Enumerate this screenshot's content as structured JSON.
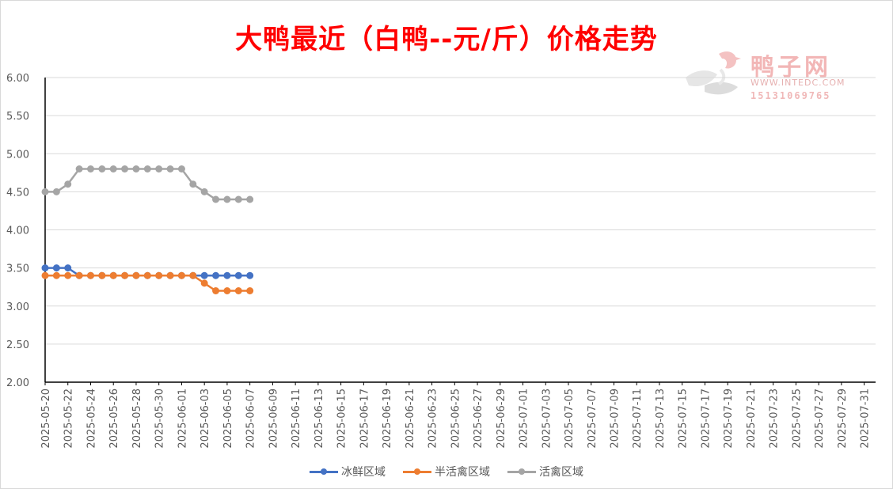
{
  "title": "大鸭最近（白鸭--元/斤）价格走势",
  "watermark": {
    "name": "鸭子网",
    "url": "WWW.INTEDC.COM",
    "phone": "15131069765"
  },
  "colors": {
    "series1": "#4472c4",
    "series2": "#ed7d31",
    "series3": "#a5a5a5",
    "grid": "#d9d9d9",
    "axis": "#000000",
    "title": "#ff0000"
  },
  "chart_data": {
    "type": "line",
    "title": "大鸭最近（白鸭--元/斤）价格走势",
    "xlabel": "",
    "ylabel": "",
    "ylim": [
      2.0,
      6.0
    ],
    "yticks": [
      "2.00",
      "2.50",
      "3.00",
      "3.50",
      "4.00",
      "4.50",
      "5.00",
      "5.50",
      "6.00"
    ],
    "grid": true,
    "legend_position": "bottom",
    "x_range": [
      "2025-05-20",
      "2025-08-01"
    ],
    "xtick_labels": [
      "2025-05-20",
      "2025-05-22",
      "2025-05-24",
      "2025-05-26",
      "2025-05-28",
      "2025-05-30",
      "2025-06-01",
      "2025-06-03",
      "2025-06-05",
      "2025-06-07",
      "2025-06-09",
      "2025-06-11",
      "2025-06-13",
      "2025-06-15",
      "2025-06-17",
      "2025-06-19",
      "2025-06-21",
      "2025-06-23",
      "2025-06-25",
      "2025-06-27",
      "2025-06-29",
      "2025-07-01",
      "2025-07-03",
      "2025-07-05",
      "2025-07-07",
      "2025-07-09",
      "2025-07-11",
      "2025-07-13",
      "2025-07-15",
      "2025-07-17",
      "2025-07-19",
      "2025-07-21",
      "2025-07-23",
      "2025-07-25",
      "2025-07-27",
      "2025-07-29",
      "2025-07-31"
    ],
    "x": [
      "2025-05-20",
      "2025-05-21",
      "2025-05-22",
      "2025-05-23",
      "2025-05-24",
      "2025-05-25",
      "2025-05-26",
      "2025-05-27",
      "2025-05-28",
      "2025-05-29",
      "2025-05-30",
      "2025-05-31",
      "2025-06-01",
      "2025-06-02",
      "2025-06-03",
      "2025-06-04",
      "2025-06-05",
      "2025-06-06",
      "2025-06-07"
    ],
    "series": [
      {
        "name": "冰鲜区域",
        "values": [
          3.5,
          3.5,
          3.5,
          3.4,
          3.4,
          3.4,
          3.4,
          3.4,
          3.4,
          3.4,
          3.4,
          3.4,
          3.4,
          3.4,
          3.4,
          3.4,
          3.4,
          3.4,
          3.4
        ]
      },
      {
        "name": "半活禽区域",
        "values": [
          3.4,
          3.4,
          3.4,
          3.4,
          3.4,
          3.4,
          3.4,
          3.4,
          3.4,
          3.4,
          3.4,
          3.4,
          3.4,
          3.4,
          3.3,
          3.2,
          3.2,
          3.2,
          3.2
        ]
      },
      {
        "name": "活禽区域",
        "values": [
          4.5,
          4.5,
          4.6,
          4.8,
          4.8,
          4.8,
          4.8,
          4.8,
          4.8,
          4.8,
          4.8,
          4.8,
          4.8,
          4.6,
          4.5,
          4.4,
          4.4,
          4.4,
          4.4
        ]
      }
    ]
  }
}
